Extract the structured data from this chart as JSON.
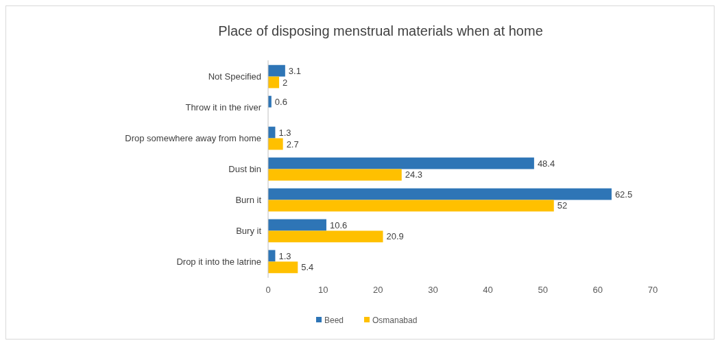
{
  "chart_data": {
    "type": "bar",
    "orientation": "horizontal",
    "title": "Place of disposing menstrual materials when at home",
    "categories": [
      "Not Specified",
      "Throw it in the river",
      "Drop somewhere away from home",
      "Dust bin",
      "Burn it",
      "Bury it",
      "Drop it into the latrine"
    ],
    "series": [
      {
        "name": "Beed",
        "color": "#2e75b6",
        "values": [
          3.1,
          0.6,
          1.3,
          48.4,
          62.5,
          10.6,
          1.3
        ]
      },
      {
        "name": "Osmanabad",
        "color": "#ffc000",
        "values": [
          2,
          null,
          2.7,
          24.3,
          52,
          20.9,
          5.4
        ]
      }
    ],
    "xlim": [
      0,
      70
    ],
    "xticks": [
      0,
      10,
      20,
      30,
      40,
      50,
      60,
      70
    ],
    "data_labels": true,
    "legend": "bottom",
    "grid": false
  }
}
